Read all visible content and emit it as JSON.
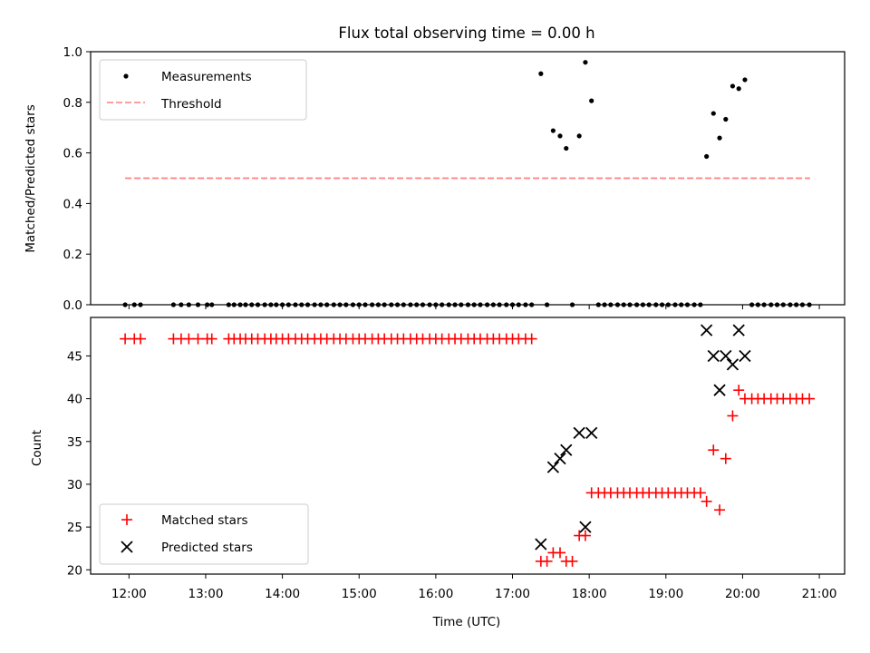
{
  "title": "Flux total observing time = 0.00 h",
  "colors": {
    "measurements": "#000000",
    "threshold": "#ff7f7f",
    "matched": "#ff0000",
    "predicted": "#000000"
  },
  "chart_data": [
    {
      "type": "scatter",
      "ylabel": "Matched/Predicted stars",
      "xlim": [
        11.5,
        21.33
      ],
      "ylim": [
        0,
        1.0
      ],
      "yticks": [
        0.0,
        0.2,
        0.4,
        0.6,
        0.8,
        1.0
      ],
      "legend": {
        "placement": "upper-left",
        "entries": [
          "Measurements",
          "Threshold"
        ]
      },
      "threshold": {
        "name": "Threshold",
        "y": 0.5,
        "x_range": [
          11.95,
          20.88
        ]
      },
      "measurements": {
        "name": "Measurements",
        "x": [
          11.95,
          12.07,
          12.15,
          12.58,
          12.68,
          12.78,
          12.9,
          13.02,
          13.08,
          13.3,
          13.37,
          13.45,
          13.52,
          13.6,
          13.68,
          13.77,
          13.85,
          13.92,
          14.0,
          14.08,
          14.17,
          14.25,
          14.33,
          14.42,
          14.5,
          14.58,
          14.67,
          14.75,
          14.83,
          14.92,
          15.0,
          15.08,
          15.17,
          15.25,
          15.33,
          15.42,
          15.5,
          15.58,
          15.67,
          15.75,
          15.83,
          15.92,
          16.0,
          16.08,
          16.17,
          16.25,
          16.33,
          16.42,
          16.5,
          16.58,
          16.67,
          16.75,
          16.83,
          16.92,
          17.0,
          17.08,
          17.17,
          17.25,
          17.37,
          17.45,
          17.53,
          17.62,
          17.7,
          17.78,
          17.87,
          17.95,
          18.03,
          18.12,
          18.2,
          18.28,
          18.37,
          18.45,
          18.53,
          18.62,
          18.7,
          18.78,
          18.87,
          18.95,
          19.03,
          19.12,
          19.2,
          19.28,
          19.37,
          19.45,
          19.53,
          19.62,
          19.7,
          19.78,
          19.87,
          19.95,
          20.03,
          20.12,
          20.2,
          20.28,
          20.37,
          20.45,
          20.53,
          20.62,
          20.7,
          20.78,
          20.87
        ],
        "y": [
          0,
          0,
          0,
          0,
          0,
          0,
          0,
          0,
          0,
          0,
          0,
          0,
          0,
          0,
          0,
          0,
          0,
          0,
          0,
          0,
          0,
          0,
          0,
          0,
          0,
          0,
          0,
          0,
          0,
          0,
          0,
          0,
          0,
          0,
          0,
          0,
          0,
          0,
          0,
          0,
          0,
          0,
          0,
          0,
          0,
          0,
          0,
          0,
          0,
          0,
          0,
          0,
          0,
          0,
          0,
          0,
          0,
          0,
          0.913,
          0,
          0.688,
          0.667,
          0.618,
          0,
          0.667,
          0.958,
          0.806,
          0,
          0,
          0,
          0,
          0,
          0,
          0,
          0,
          0,
          0,
          0,
          0,
          0,
          0,
          0,
          0,
          0,
          0.586,
          0.756,
          0.659,
          0.733,
          0.864,
          0.854,
          0.889,
          0,
          0,
          0,
          0,
          0,
          0,
          0,
          0,
          0,
          0
        ]
      }
    },
    {
      "type": "scatter",
      "xlabel": "Time (UTC)",
      "ylabel": "Count",
      "xlim": [
        11.5,
        21.33
      ],
      "ylim": [
        19.5,
        49.5
      ],
      "yticks": [
        20,
        25,
        30,
        35,
        40,
        45
      ],
      "xticks": [
        12,
        13,
        14,
        15,
        16,
        17,
        18,
        19,
        20,
        21
      ],
      "xticklabels": [
        "12:00",
        "13:00",
        "14:00",
        "15:00",
        "16:00",
        "17:00",
        "18:00",
        "19:00",
        "20:00",
        "21:00"
      ],
      "legend": {
        "placement": "lower-left",
        "entries": [
          "Matched stars",
          "Predicted stars"
        ]
      },
      "series": [
        {
          "name": "Matched stars",
          "x": [
            11.95,
            12.07,
            12.15,
            12.58,
            12.68,
            12.78,
            12.9,
            13.02,
            13.08,
            13.3,
            13.37,
            13.45,
            13.52,
            13.6,
            13.68,
            13.77,
            13.85,
            13.92,
            14.0,
            14.08,
            14.17,
            14.25,
            14.33,
            14.42,
            14.5,
            14.58,
            14.67,
            14.75,
            14.83,
            14.92,
            15.0,
            15.08,
            15.17,
            15.25,
            15.33,
            15.42,
            15.5,
            15.58,
            15.67,
            15.75,
            15.83,
            15.92,
            16.0,
            16.08,
            16.17,
            16.25,
            16.33,
            16.42,
            16.5,
            16.58,
            16.67,
            16.75,
            16.83,
            16.92,
            17.0,
            17.08,
            17.17,
            17.25,
            17.37,
            17.45,
            17.53,
            17.62,
            17.7,
            17.78,
            17.87,
            17.95,
            18.03,
            18.12,
            18.2,
            18.28,
            18.37,
            18.45,
            18.53,
            18.62,
            18.7,
            18.78,
            18.87,
            18.95,
            19.03,
            19.12,
            19.2,
            19.28,
            19.37,
            19.45,
            19.53,
            19.62,
            19.7,
            19.78,
            19.87,
            19.95,
            20.03,
            20.12,
            20.2,
            20.28,
            20.37,
            20.45,
            20.53,
            20.62,
            20.7,
            20.78,
            20.87
          ],
          "y": [
            47,
            47,
            47,
            47,
            47,
            47,
            47,
            47,
            47,
            47,
            47,
            47,
            47,
            47,
            47,
            47,
            47,
            47,
            47,
            47,
            47,
            47,
            47,
            47,
            47,
            47,
            47,
            47,
            47,
            47,
            47,
            47,
            47,
            47,
            47,
            47,
            47,
            47,
            47,
            47,
            47,
            47,
            47,
            47,
            47,
            47,
            47,
            47,
            47,
            47,
            47,
            47,
            47,
            47,
            47,
            47,
            47,
            47,
            21,
            21,
            22,
            22,
            21,
            21,
            24,
            24,
            29,
            29,
            29,
            29,
            29,
            29,
            29,
            29,
            29,
            29,
            29,
            29,
            29,
            29,
            29,
            29,
            29,
            29,
            28,
            34,
            27,
            33,
            38,
            41,
            40,
            40,
            40,
            40,
            40,
            40,
            40,
            40,
            40,
            40,
            40
          ]
        },
        {
          "name": "Predicted stars",
          "x": [
            17.37,
            17.53,
            17.62,
            17.7,
            17.87,
            17.95,
            18.03,
            19.53,
            19.62,
            19.7,
            19.78,
            19.87,
            19.95,
            20.03
          ],
          "y": [
            23,
            32,
            33,
            34,
            36,
            25,
            36,
            48,
            45,
            41,
            45,
            44,
            48,
            45
          ]
        }
      ]
    }
  ]
}
